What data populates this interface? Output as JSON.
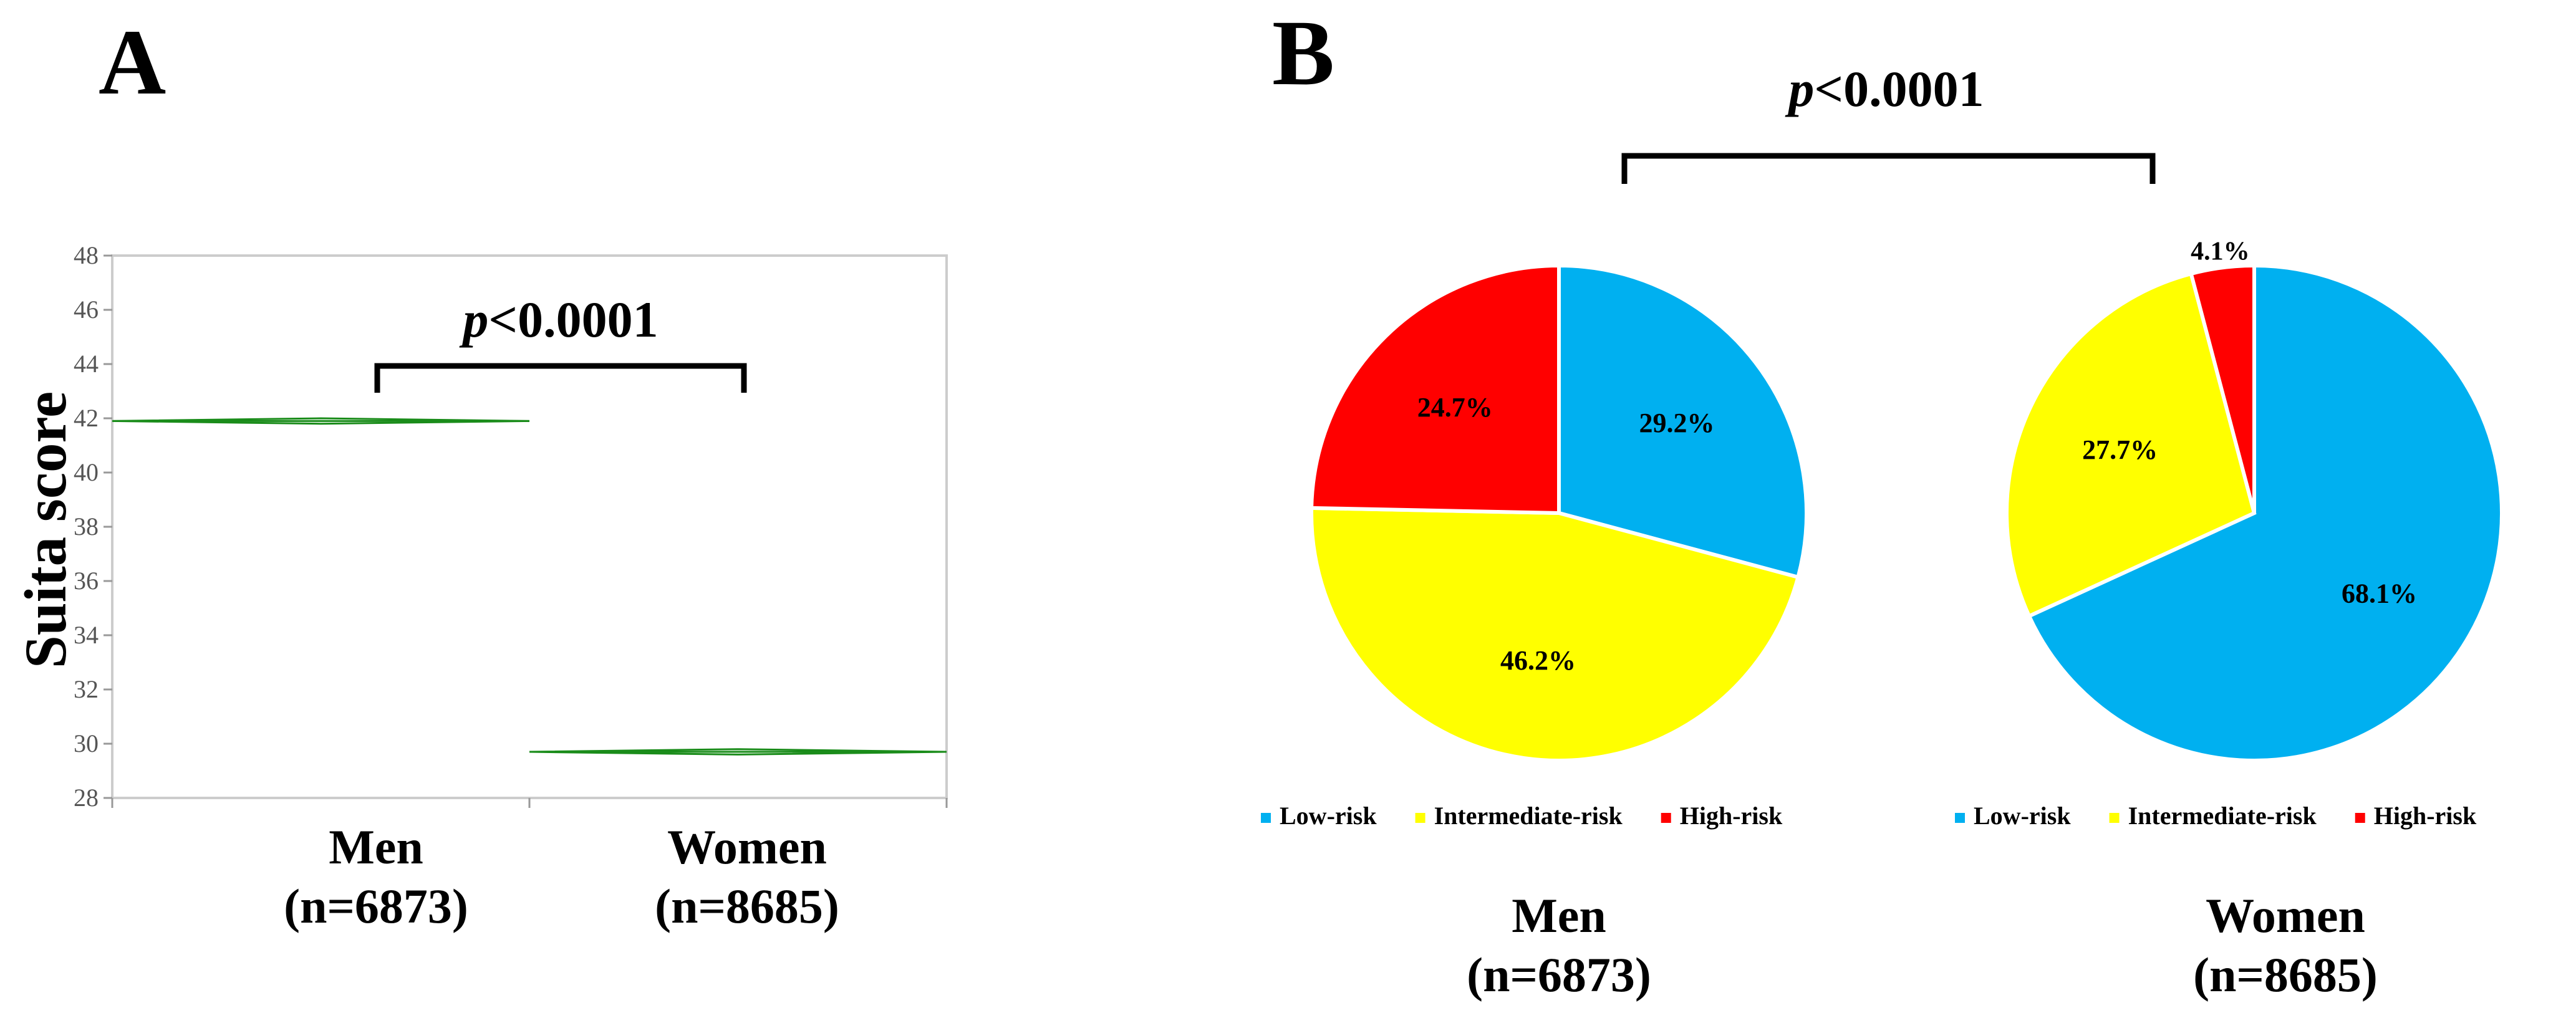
{
  "panels": {
    "a_label": "A",
    "b_label": "B"
  },
  "colors": {
    "low": "#00B0F0",
    "intermediate": "#FFFF00",
    "high": "#FF0000",
    "diamond": "#1a8c1a"
  },
  "chart_data": [
    {
      "type": "scatter",
      "title": "",
      "ylabel": "Suita score",
      "xlabel": "",
      "ylim": [
        28,
        48
      ],
      "yticks": [
        28,
        30,
        32,
        34,
        36,
        38,
        40,
        42,
        44,
        46,
        48
      ],
      "categories": [
        {
          "name": "Men",
          "n": "(n=6873)",
          "mean": 41.9,
          "ci": [
            41.8,
            42.0
          ]
        },
        {
          "name": "Women",
          "n": "(n=8685)",
          "mean": 29.7,
          "ci": [
            29.6,
            29.8
          ]
        }
      ],
      "p_value": "<0.0001",
      "p_symbol": "p",
      "grid": false
    },
    {
      "type": "pie",
      "title": "",
      "p_value": "<0.0001",
      "p_symbol": "p",
      "legend": [
        "Low-risk",
        "Intermediate-risk",
        "High-risk"
      ],
      "legend_position": "bottom",
      "series": [
        {
          "name": "Men",
          "n": "(n=6873)",
          "slices": [
            {
              "label": "Low-risk",
              "value": 29.2,
              "text": "29.2%"
            },
            {
              "label": "Intermediate-risk",
              "value": 46.2,
              "text": "46.2%"
            },
            {
              "label": "High-risk",
              "value": 24.7,
              "text": "24.7%"
            }
          ]
        },
        {
          "name": "Women",
          "n": "(n=8685)",
          "slices": [
            {
              "label": "Low-risk",
              "value": 68.1,
              "text": "68.1%"
            },
            {
              "label": "Intermediate-risk",
              "value": 27.7,
              "text": "27.7%"
            },
            {
              "label": "High-risk",
              "value": 4.1,
              "text": "4.1%"
            }
          ]
        }
      ]
    }
  ]
}
